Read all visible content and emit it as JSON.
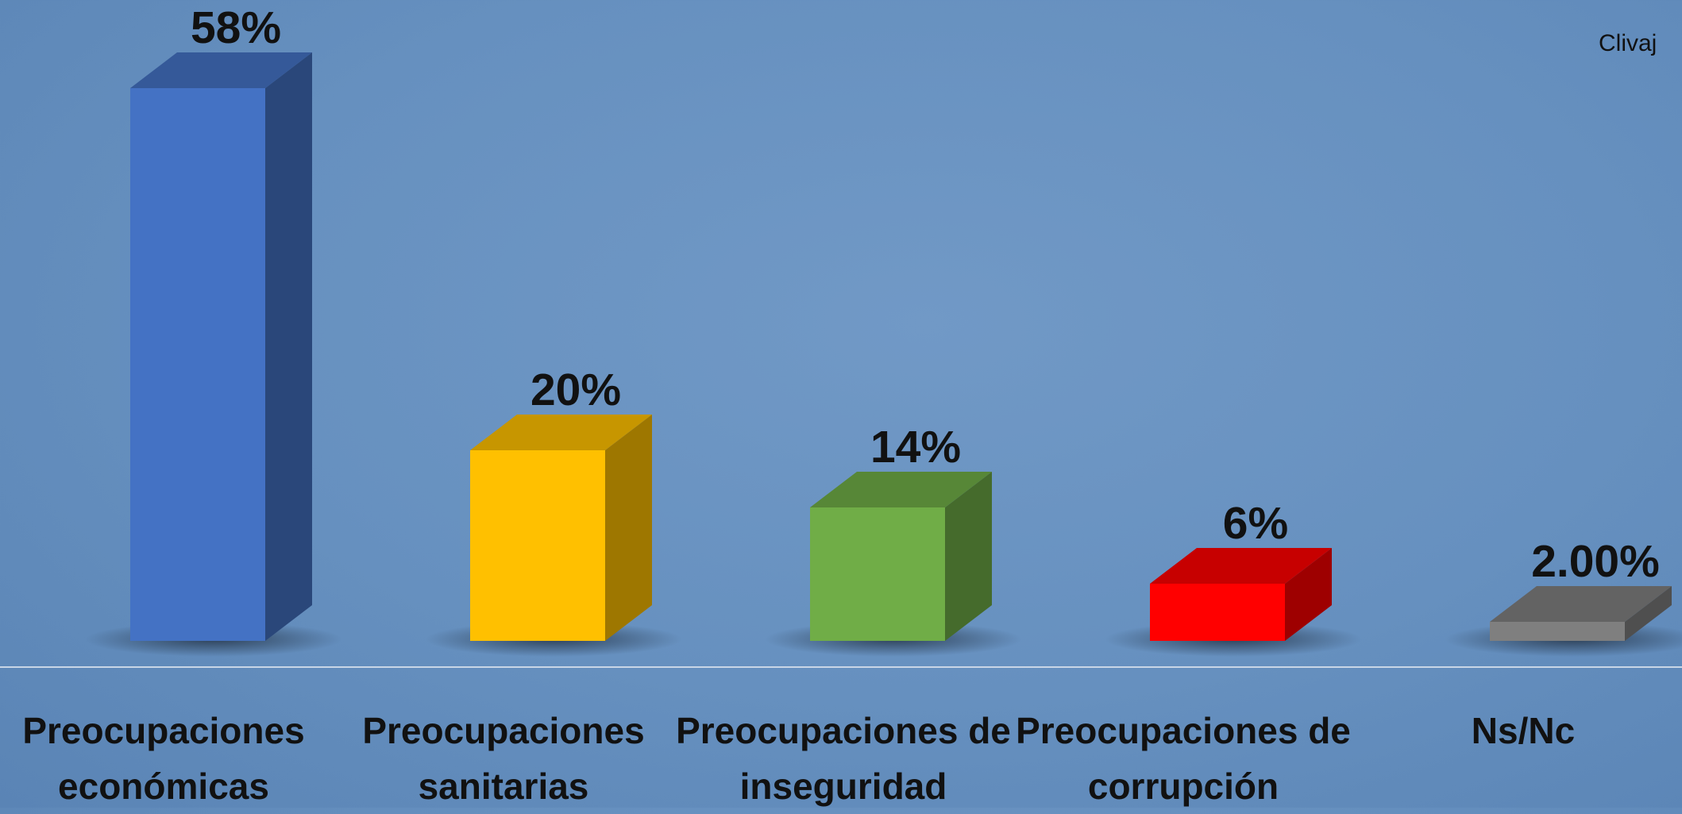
{
  "chart_data": {
    "type": "bar",
    "categories": [
      "Preocupaciones económicas",
      "Preocupaciones sanitarias",
      "Preocupaciones de inseguridad",
      "Preocupaciones de corrupción",
      "Ns/Nc"
    ],
    "values": [
      58,
      20,
      14,
      6,
      2
    ],
    "value_labels": [
      "58%",
      "20%",
      "14%",
      "6%",
      "2.00%"
    ],
    "colors": [
      "#4472c4",
      "#ffc000",
      "#70ad47",
      "#ff0000",
      "#7f7f7f"
    ],
    "annotation": "Clivaj"
  }
}
